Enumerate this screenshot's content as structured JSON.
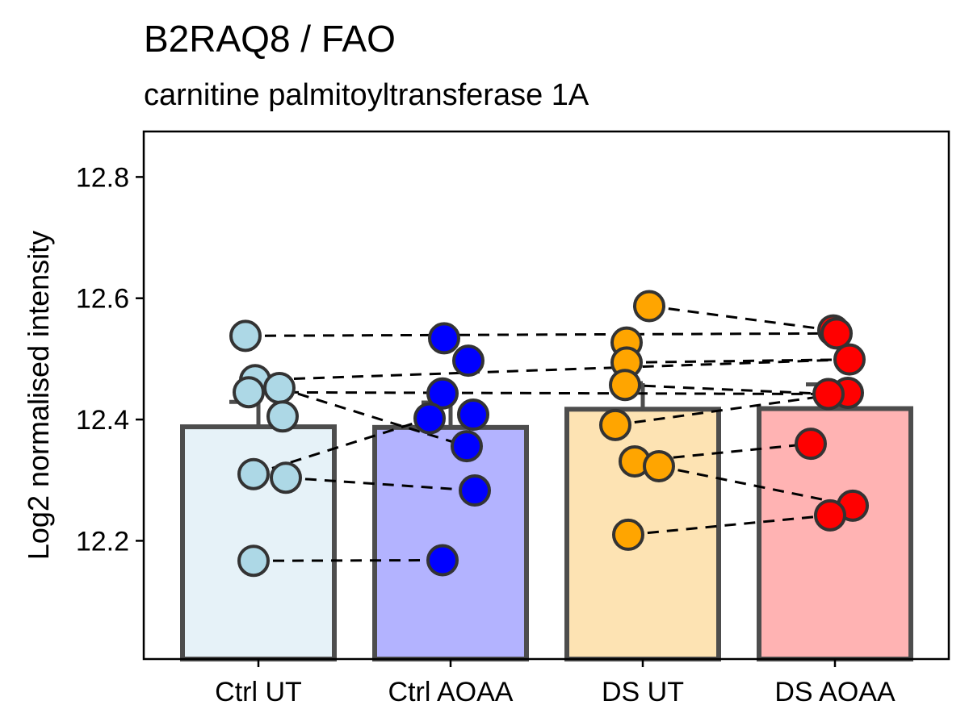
{
  "chart_data": {
    "type": "bar",
    "title": "B2RAQ8 / FAO",
    "subtitle": "carnitine palmitoyltransferase 1A",
    "xlabel": "",
    "ylabel": "Log2 normalised intensity",
    "ylim": [
      12.005,
      12.875
    ],
    "yticks": [
      "12.2",
      "12.4",
      "12.6",
      "12.8"
    ],
    "grid": false,
    "categories": [
      "Ctrl UT",
      "Ctrl AOAA",
      "DS UT",
      "DS AOAA"
    ],
    "values": [
      12.388,
      12.387,
      12.417,
      12.418
    ],
    "errors": [
      0.041,
      0.041,
      0.043,
      0.04
    ],
    "colors": {
      "fills": [
        "#e6f2f8",
        "#b3b3ff",
        "#fde3b3",
        "#ffb3b3"
      ],
      "points": [
        "#add8e6",
        "#0000ff",
        "#ffa500",
        "#ff0000"
      ],
      "bar_outline": "#4d4d4d"
    },
    "points": [
      [
        12.538,
        12.465,
        12.452,
        12.445,
        12.405,
        12.31,
        12.304,
        12.167
      ],
      [
        12.534,
        12.497,
        12.443,
        12.408,
        12.402,
        12.356,
        12.283,
        12.168
      ],
      [
        12.587,
        12.527,
        12.494,
        12.457,
        12.391,
        12.331,
        12.323,
        12.21
      ],
      [
        12.547,
        12.542,
        12.499,
        12.444,
        12.442,
        12.36,
        12.258,
        12.242
      ]
    ],
    "pairs": [
      [
        12.538,
        12.542
      ],
      [
        12.465,
        12.499
      ],
      [
        12.445,
        12.442
      ],
      [
        12.452,
        12.356
      ],
      [
        12.31,
        12.402
      ],
      [
        12.304,
        12.283
      ],
      [
        12.167,
        12.168
      ],
      [
        12.587,
        12.547
      ],
      [
        12.527,
        12.544
      ],
      [
        12.494,
        12.499
      ],
      [
        12.457,
        12.442
      ],
      [
        12.391,
        12.444
      ],
      [
        12.331,
        12.36
      ],
      [
        12.323,
        12.258
      ],
      [
        12.21,
        12.242
      ]
    ]
  }
}
